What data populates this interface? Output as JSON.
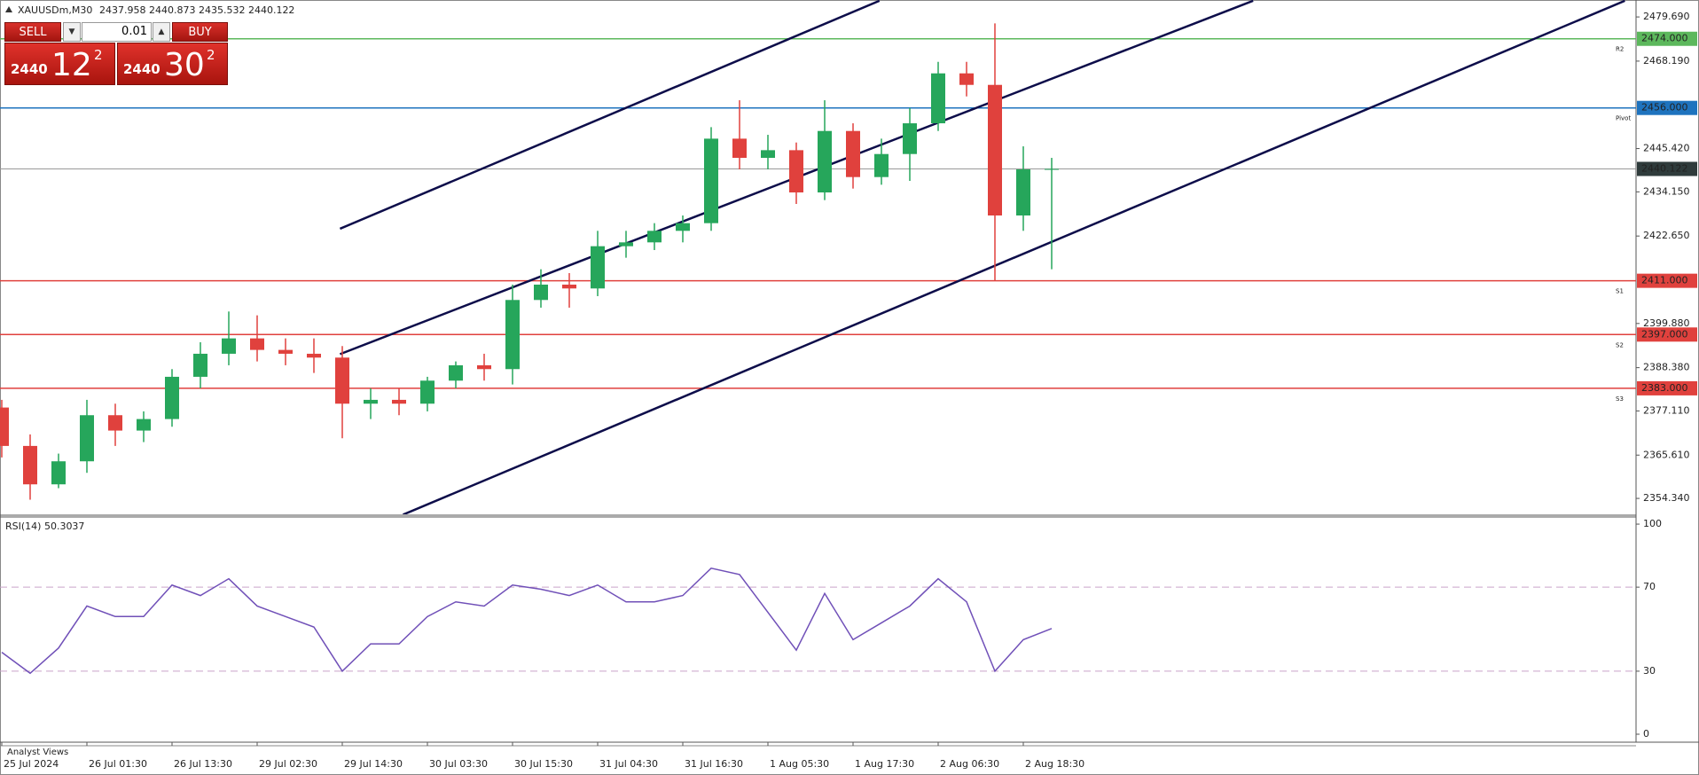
{
  "header": {
    "symbol": "XAUUSDm,M30",
    "ohlc": "2437.958 2440.873 2435.532 2440.122"
  },
  "trade_panel": {
    "sell": "SELL",
    "buy": "BUY",
    "lot": "0.01",
    "bid": {
      "base": "2440",
      "big": "12",
      "pip": "2"
    },
    "ask": {
      "base": "2440",
      "big": "30",
      "pip": "2"
    }
  },
  "footer": "Analyst Views",
  "chart_data": [
    {
      "type": "candlestick",
      "categories": [
        "25 Jul 2024",
        null,
        null,
        "26 Jul 01:30",
        null,
        null,
        "26 Jul 13:30",
        null,
        null,
        "29 Jul 02:30",
        null,
        null,
        "29 Jul 14:30",
        null,
        null,
        "30 Jul 03:30",
        null,
        null,
        "30 Jul 15:30",
        null,
        null,
        "31 Jul 04:30",
        null,
        null,
        "31 Jul 16:30",
        null,
        null,
        "1 Aug 05:30",
        null,
        null,
        "1 Aug 17:30",
        null,
        null,
        "2 Aug 06:30",
        null,
        null,
        "2 Aug 18:30",
        null
      ],
      "open": [
        2378,
        2368,
        2358,
        2364,
        2376,
        2372,
        2375,
        2386,
        2392,
        2396,
        2393,
        2392,
        2391,
        2379,
        2380,
        2379,
        2385,
        2389,
        2388,
        2406,
        2410,
        2409,
        2420,
        2421,
        2424,
        2426,
        2448,
        2443,
        2445,
        2434,
        2450,
        2438,
        2444,
        2452,
        2465,
        2462,
        2428,
        2440
      ],
      "high": [
        2380,
        2371,
        2366,
        2380,
        2379,
        2377,
        2388,
        2395,
        2403,
        2402,
        2396,
        2396,
        2394,
        2383,
        2383,
        2386,
        2390,
        2392,
        2410,
        2414,
        2413,
        2424,
        2424,
        2426,
        2428,
        2451,
        2458,
        2449,
        2447,
        2458,
        2452,
        2448,
        2456,
        2468,
        2468,
        2478,
        2446,
        2443
      ],
      "low": [
        2365,
        2354,
        2357,
        2361,
        2368,
        2369,
        2373,
        2383,
        2389,
        2390,
        2389,
        2387,
        2370,
        2375,
        2376,
        2377,
        2383,
        2385,
        2384,
        2404,
        2404,
        2407,
        2417,
        2419,
        2421,
        2424,
        2440,
        2440,
        2431,
        2432,
        2435,
        2436,
        2437,
        2450,
        2459,
        2411,
        2424,
        2414
      ],
      "close": [
        2368,
        2358,
        2364,
        2376,
        2372,
        2375,
        2386,
        2392,
        2396,
        2393,
        2392,
        2391,
        2379,
        2380,
        2379,
        2385,
        2389,
        2388,
        2406,
        2410,
        2409,
        2420,
        2421,
        2424,
        2426,
        2448,
        2443,
        2445,
        2434,
        2450,
        2438,
        2444,
        2452,
        2465,
        2462,
        2428,
        2440,
        2440.122
      ],
      "up_color": "#26a65b",
      "down_color": "#e0413d",
      "ylim": [
        2350.2,
        2484.1
      ],
      "yticks": [
        {
          "value": 2479.69,
          "label": "2479.690"
        },
        {
          "value": 2468.19,
          "label": "2468.190"
        },
        {
          "value": 2445.42,
          "label": "2445.420"
        },
        {
          "value": 2434.15,
          "label": "2434.150"
        },
        {
          "value": 2422.65,
          "label": "2422.650"
        },
        {
          "value": 2399.88,
          "label": "2399.880"
        },
        {
          "value": 2388.38,
          "label": "2388.380"
        },
        {
          "value": 2377.11,
          "label": "2377.110"
        },
        {
          "value": 2365.61,
          "label": "2365.610"
        },
        {
          "value": 2354.34,
          "label": "2354.340"
        }
      ],
      "trendlines": [
        {
          "x": [
            11.92,
            30.93
          ],
          "y": [
            2424.55,
            2483.9
          ]
        },
        {
          "x": [
            11.92,
            44.1
          ],
          "y": [
            2391.9,
            2483.9
          ]
        },
        {
          "x": [
            14.14,
            57.2
          ],
          "y": [
            2350.1,
            2483.9
          ]
        }
      ],
      "trendline_color": "#0d0d4a",
      "levels": [
        {
          "name": "R2",
          "value": 2474,
          "label": "2474.000",
          "color": "#5cb85c"
        },
        {
          "name": "Pivot",
          "value": 2456,
          "label": "2456.000",
          "color": "#1e73be"
        },
        {
          "name": "S1",
          "value": 2411,
          "label": "2411.000",
          "color": "#e0413d"
        },
        {
          "name": "S2",
          "value": 2397,
          "label": "2397.000",
          "color": "#e0413d"
        },
        {
          "name": "S3",
          "value": 2383,
          "label": "2383.000",
          "color": "#e0413d"
        }
      ],
      "current": 2440.122
    },
    {
      "type": "line",
      "title": "RSI(14) 50.3037",
      "values": [
        39,
        29,
        41,
        61,
        56,
        56,
        71,
        66,
        74,
        61,
        56,
        51,
        30,
        43,
        43,
        56,
        63,
        61,
        71,
        69,
        66,
        71,
        63,
        63,
        66,
        79,
        76,
        58,
        40,
        67,
        45,
        53,
        61,
        74,
        63,
        30,
        45,
        50.3037
      ],
      "color": "#7050b8",
      "ylim": [
        -3.8,
        103.4
      ],
      "yticks": [
        0,
        30,
        70,
        100
      ],
      "levels": [
        30,
        70
      ],
      "level_color": "#c9a3c9"
    }
  ]
}
